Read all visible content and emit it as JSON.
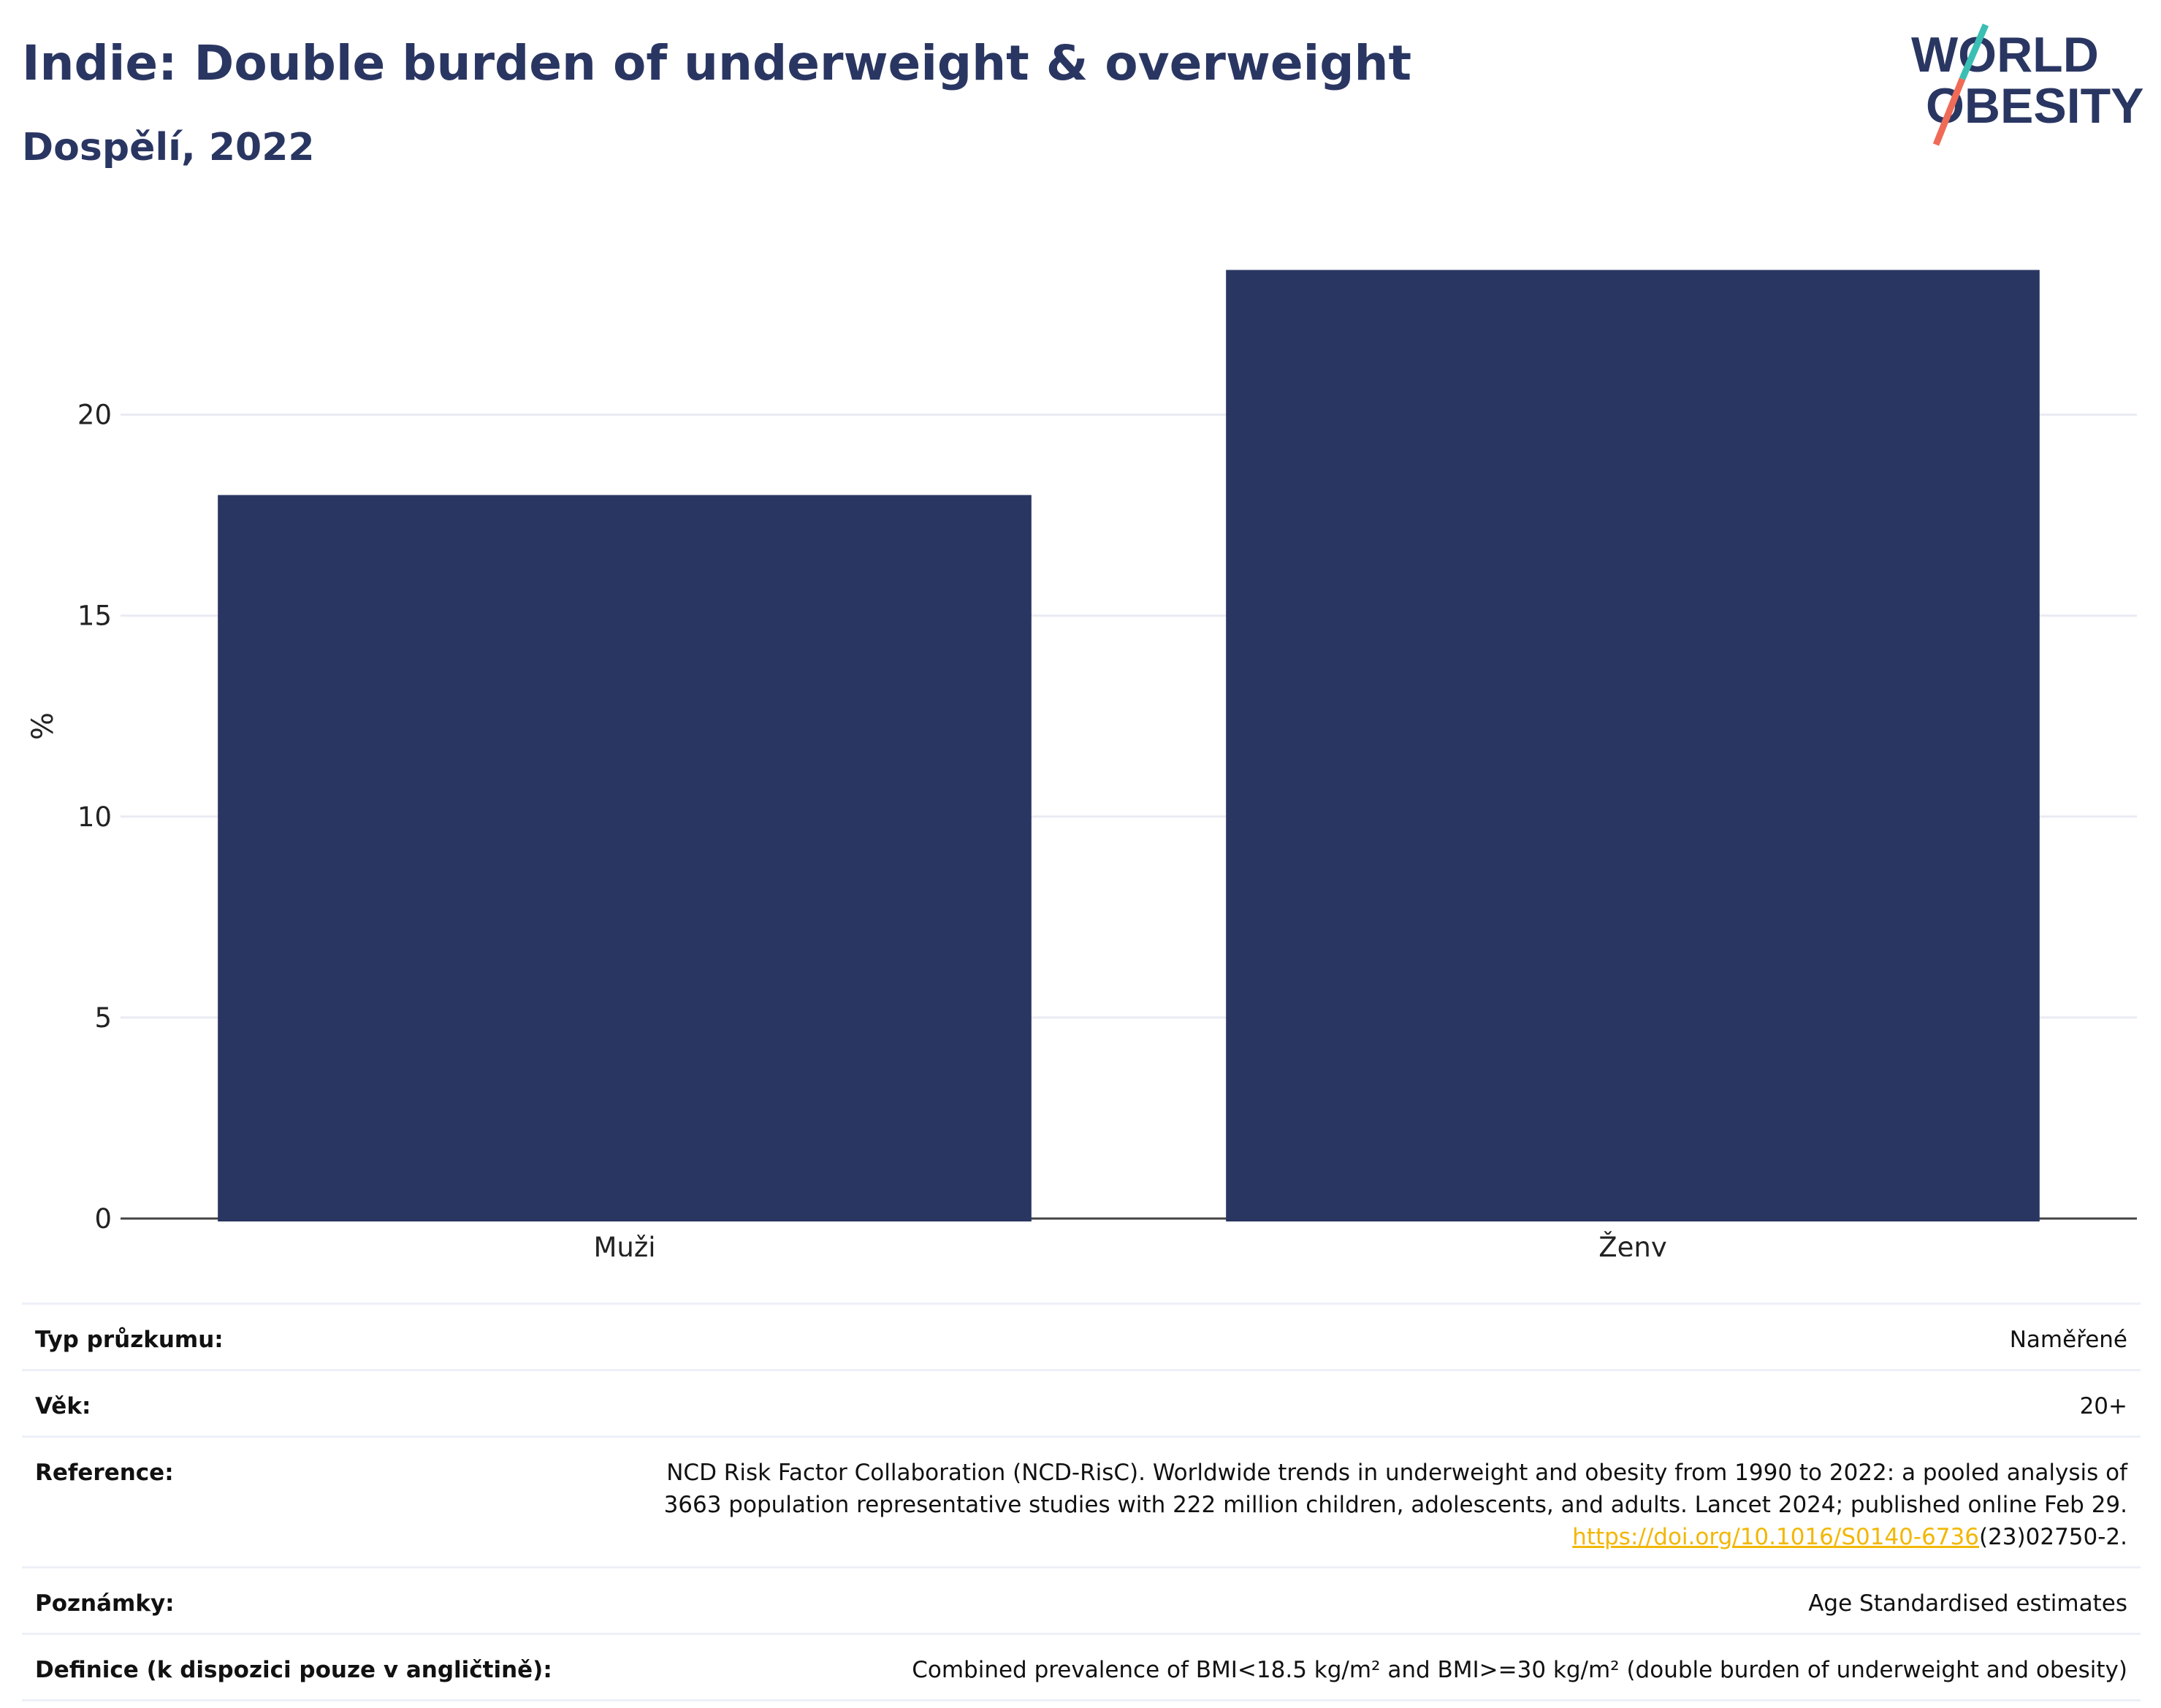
{
  "header": {
    "title": "Indie: Double burden of underweight & overweight",
    "subtitle": "Dospělí, 2022"
  },
  "logo": {
    "line1": "WORLD",
    "line2": "OBESITY",
    "colors": {
      "text": "#2a3662",
      "teal": "#3bbfb4",
      "coral": "#ef6b58"
    }
  },
  "chart_data": {
    "type": "bar",
    "categories": [
      "Muži",
      "Ženy"
    ],
    "values": [
      18.0,
      23.6
    ],
    "title": "",
    "xlabel": "",
    "ylabel": "%",
    "ylim": [
      0,
      24.5
    ],
    "yticks": [
      0,
      5,
      10,
      15,
      20
    ],
    "grid": true,
    "bar_color": "#2a3662"
  },
  "info": {
    "rows": [
      {
        "key": "Typ průzkumu:",
        "value": "Naměřené"
      },
      {
        "key": "Věk:",
        "value": "20+"
      },
      {
        "key": "Reference:",
        "value_line1": "NCD Risk Factor Collaboration (NCD-RisC). Worldwide trends in underweight and obesity from 1990 to 2022: a pooled analysis of",
        "value_line2": "3663 population representative studies with 222 million children, adolescents, and adults. Lancet 2024; published online Feb 29.",
        "link_text": "https://doi.org/10.1016/S0140-6736",
        "link_suffix": "(23)02750-2."
      },
      {
        "key": "Poznámky:",
        "value": "Age Standardised estimates"
      },
      {
        "key": "Definice (k dispozici pouze v angličtině):",
        "value": "Combined prevalence of BMI<18.5 kg/m² and BMI>=30 kg/m² (double burden of underweight and obesity)"
      }
    ]
  }
}
